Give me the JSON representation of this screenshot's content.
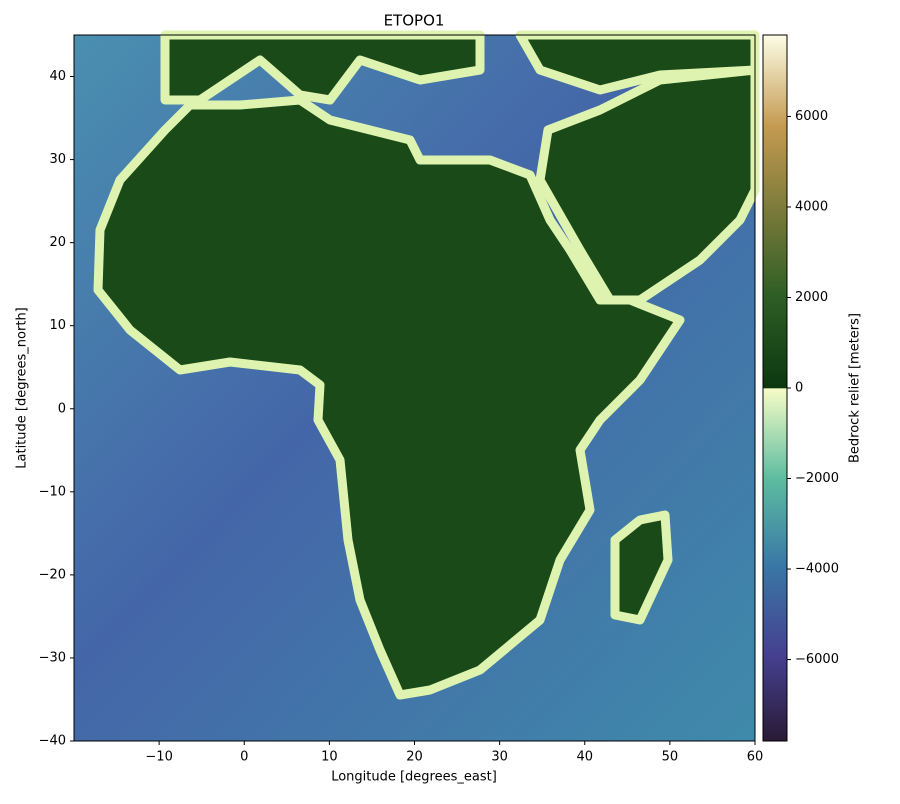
{
  "chart_data": {
    "type": "image",
    "title": "ETOPO1",
    "x_label": "Longitude [degrees_east]",
    "y_label": "Latitude [degrees_north]",
    "xlim": [
      -20,
      60
    ],
    "ylim": [
      -40,
      45
    ],
    "xticks": [
      {
        "value": -10,
        "label": "−10"
      },
      0,
      10,
      20,
      30,
      40,
      50,
      60
    ],
    "yticks": [
      {
        "value": -40,
        "label": "−40"
      },
      {
        "value": -30,
        "label": "−30"
      },
      {
        "value": -20,
        "label": "−20"
      },
      {
        "value": -10,
        "label": "−10"
      },
      0,
      10,
      20,
      30,
      40
    ],
    "colorbar": {
      "label": "Bedrock relief [meters]",
      "clim": [
        -7800,
        7800
      ],
      "ticks": [
        {
          "value": -6000,
          "label": "−6000"
        },
        {
          "value": -4000,
          "label": "−4000"
        },
        {
          "value": -2000,
          "label": "−2000"
        },
        0,
        2000,
        4000,
        6000
      ]
    }
  }
}
